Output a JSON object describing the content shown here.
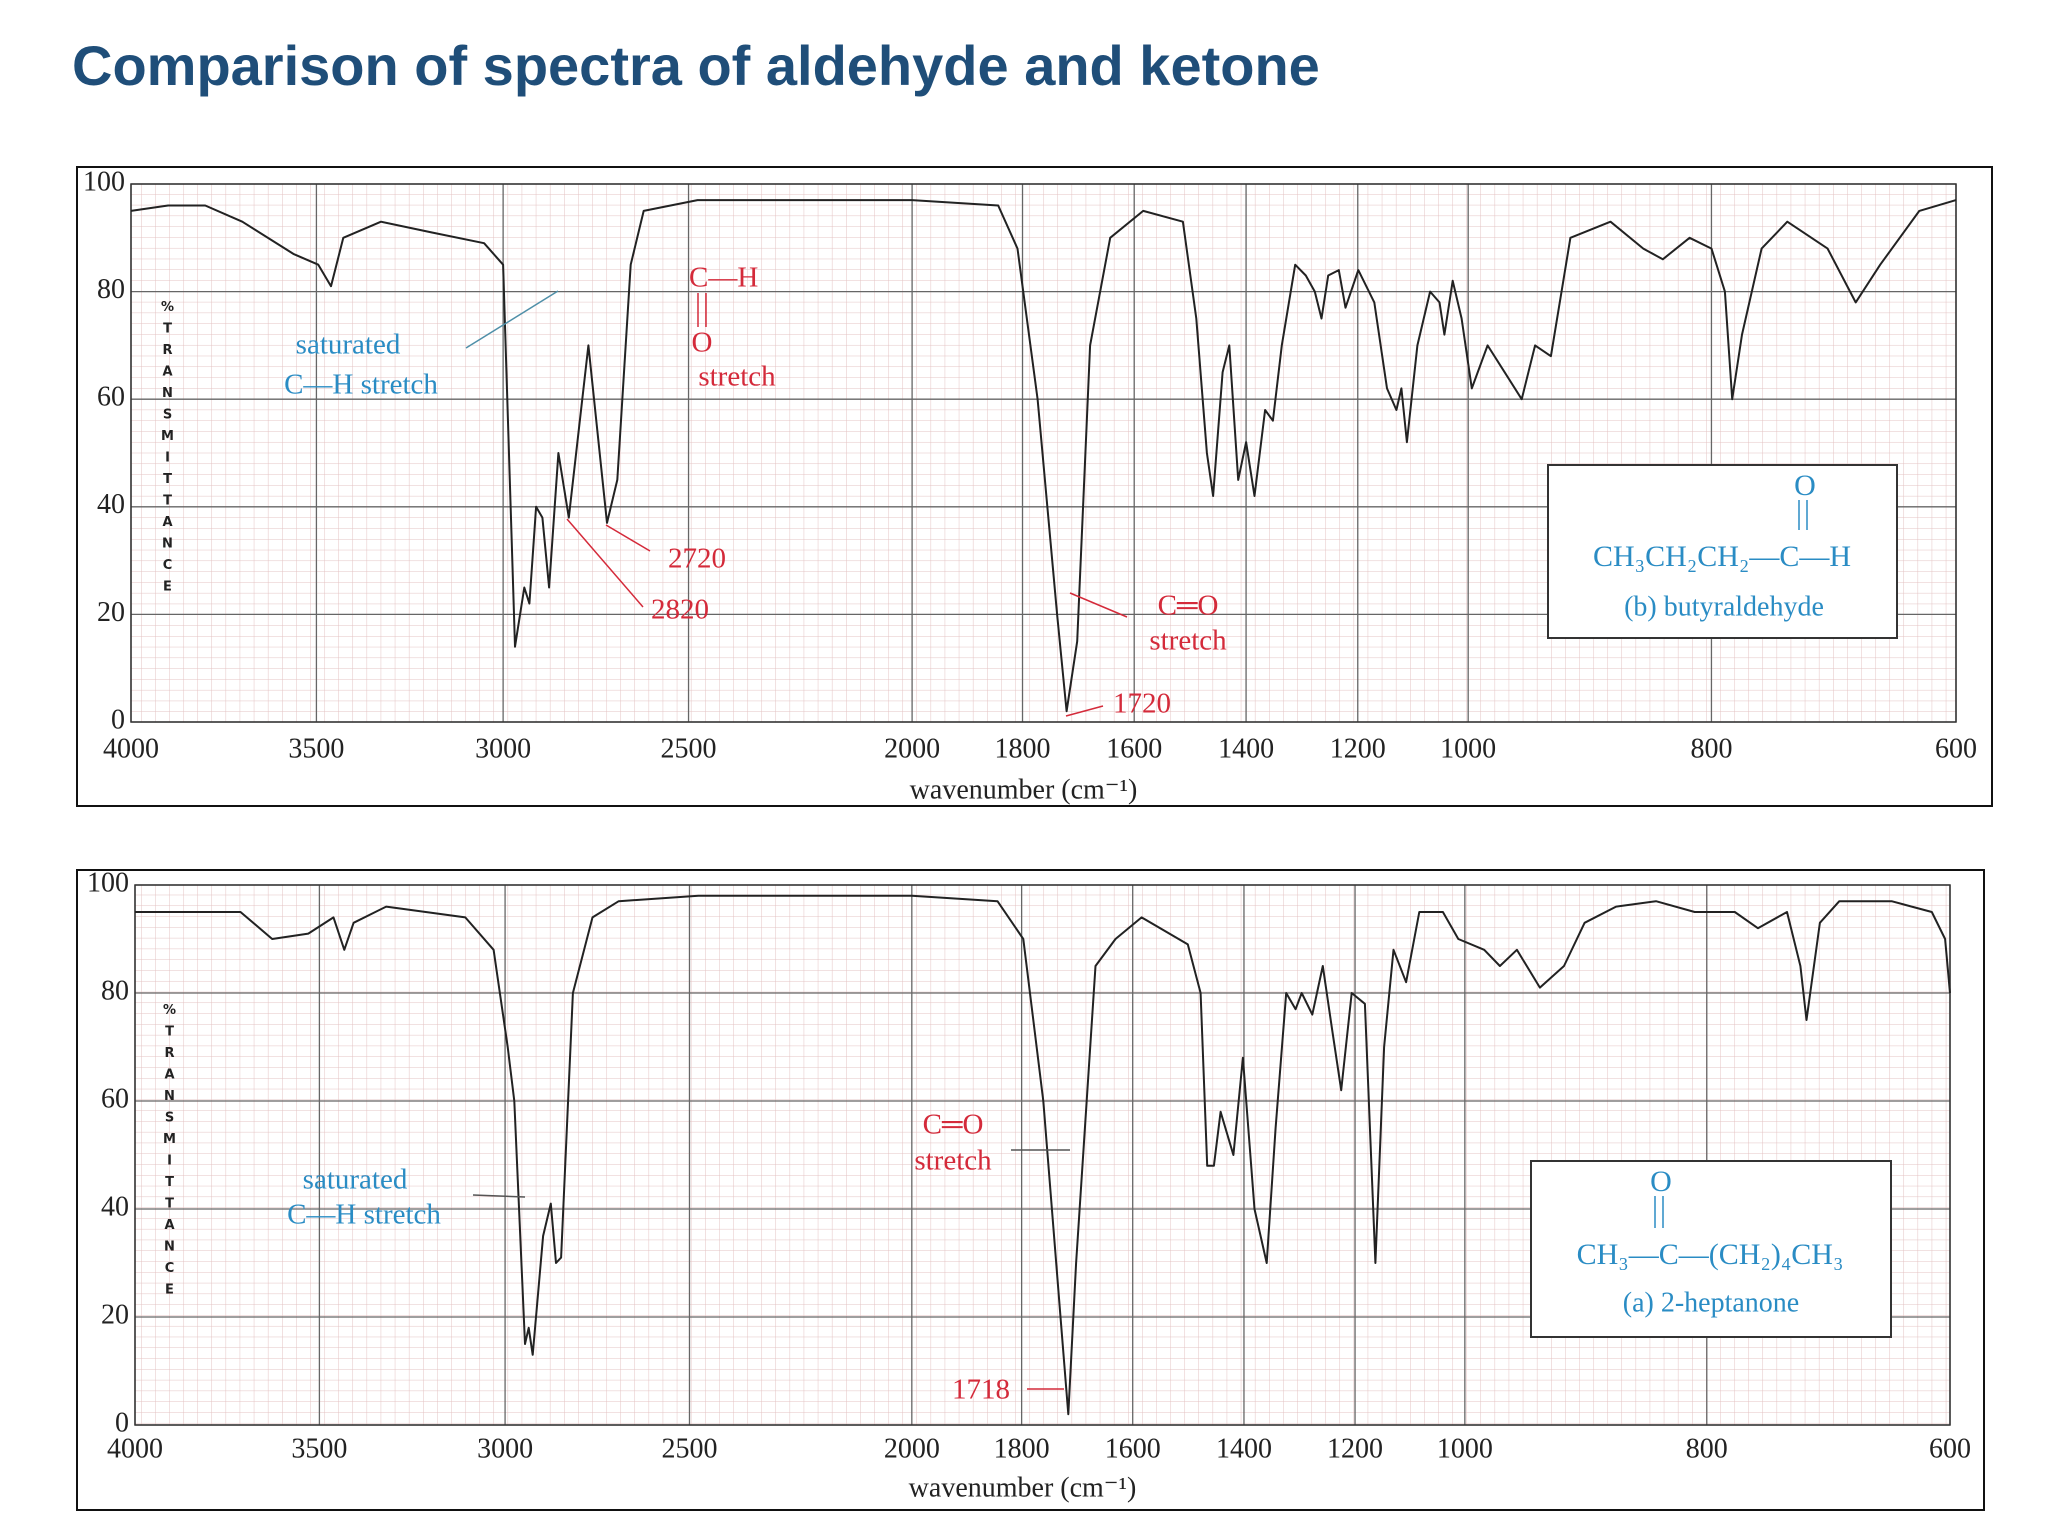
{
  "title": "Comparison of spectra of aldehyde and ketone",
  "chart_data": [
    {
      "type": "line",
      "x_label": "wavenumber (cm⁻¹)",
      "y_label": "%TRANSMITTANCE",
      "x": [
        4000,
        3900,
        3800,
        3700,
        3562,
        3495,
        3461,
        3428,
        3327,
        3192,
        3051,
        3000,
        2968,
        2943,
        2929,
        2911,
        2894,
        2876,
        2851,
        2823,
        2770,
        2720,
        2692,
        2656,
        2621,
        2480,
        2000,
        1844,
        1809,
        1773,
        1738,
        1721,
        1702,
        1679,
        1643,
        1584,
        1513,
        1489,
        1470,
        1459,
        1442,
        1430,
        1414,
        1400,
        1385,
        1366,
        1352,
        1336,
        1312,
        1293,
        1277,
        1265,
        1253,
        1234,
        1222,
        1199,
        1170,
        1147,
        1130,
        1121,
        1111,
        1092,
        1069,
        1052,
        1043,
        1028,
        1012,
        997,
        984,
        970,
        956,
        945,
        932,
        916,
        883,
        856,
        840,
        818,
        800,
        789,
        783,
        775,
        759,
        738,
        705,
        682,
        662,
        630,
        600
      ],
      "values": [
        95,
        96,
        96,
        93,
        87,
        85,
        81,
        90,
        93,
        91,
        89,
        85,
        14,
        25,
        22,
        40,
        38,
        25,
        50,
        38,
        70,
        37,
        45,
        85,
        95,
        97,
        97,
        96,
        88,
        60,
        20,
        2,
        15,
        70,
        90,
        95,
        93,
        75,
        50,
        42,
        65,
        70,
        45,
        52,
        42,
        58,
        56,
        70,
        85,
        83,
        80,
        75,
        83,
        84,
        77,
        84,
        78,
        62,
        58,
        62,
        52,
        70,
        80,
        78,
        72,
        82,
        75,
        62,
        70,
        65,
        60,
        70,
        68,
        90,
        93,
        88,
        86,
        90,
        88,
        80,
        60,
        72,
        88,
        93,
        88,
        78,
        85,
        95,
        97
      ],
      "color": "#222222",
      "xlim": [
        4000,
        600
      ],
      "ylim": [
        0,
        100
      ],
      "xticks": [
        4000,
        3500,
        3000,
        2500,
        2000,
        1800,
        1600,
        1400,
        1200,
        1000,
        800,
        600
      ],
      "yticks": [
        0,
        20,
        40,
        60,
        80,
        100
      ],
      "grid": true,
      "annotations": [
        "saturated",
        "C—H stretch",
        "C—H",
        "O",
        "stretch",
        "2720",
        "2820",
        "C═O",
        "stretch",
        "1720"
      ],
      "structure": {
        "top": "O",
        "formula": "CH₃CH₂CH₂—C—H",
        "caption": "(b) butyraldehyde"
      }
    },
    {
      "type": "line",
      "x_label": "wavenumber (cm⁻¹)",
      "y_label": "%TRANSMITTANCE",
      "x": [
        4000,
        3714,
        3628,
        3530,
        3462,
        3433,
        3408,
        3320,
        3107,
        3031,
        2993,
        2975,
        2946,
        2936,
        2925,
        2897,
        2876,
        2862,
        2848,
        2816,
        2763,
        2692,
        2480,
        2000,
        1844,
        1797,
        1761,
        1730,
        1716,
        1702,
        1667,
        1631,
        1584,
        1501,
        1478,
        1466,
        1454,
        1442,
        1419,
        1402,
        1381,
        1359,
        1343,
        1324,
        1307,
        1296,
        1277,
        1258,
        1241,
        1225,
        1206,
        1182,
        1163,
        1147,
        1130,
        1107,
        1083,
        1040,
        1012,
        984,
        971,
        957,
        938,
        918,
        901,
        875,
        842,
        810,
        777,
        758,
        734,
        723,
        718,
        707,
        691,
        648,
        615,
        604,
        600
      ],
      "values": [
        95,
        95,
        90,
        91,
        94,
        88,
        93,
        96,
        94,
        88,
        70,
        60,
        15,
        18,
        13,
        35,
        41,
        30,
        31,
        80,
        94,
        97,
        98,
        98,
        97,
        90,
        60,
        20,
        2,
        30,
        85,
        90,
        94,
        89,
        80,
        48,
        48,
        58,
        50,
        68,
        40,
        30,
        55,
        80,
        77,
        80,
        76,
        85,
        73,
        62,
        80,
        78,
        30,
        70,
        88,
        82,
        95,
        95,
        90,
        88,
        85,
        88,
        81,
        85,
        93,
        96,
        97,
        95,
        95,
        92,
        95,
        85,
        75,
        93,
        97,
        97,
        95,
        90,
        80
      ],
      "color": "#222222",
      "xlim": [
        4000,
        600
      ],
      "ylim": [
        0,
        100
      ],
      "xticks": [
        4000,
        3500,
        3000,
        2500,
        2000,
        1800,
        1600,
        1400,
        1200,
        1000,
        800,
        600
      ],
      "yticks": [
        0,
        20,
        40,
        60,
        80,
        100
      ],
      "grid": true,
      "annotations": [
        "saturated",
        "C—H stretch",
        "C═O",
        "stretch",
        "1718"
      ],
      "structure": {
        "top": "O",
        "formula": "CH₃—C—(CH₂)₄CH₃",
        "caption": "(a) 2-heptanone"
      }
    }
  ]
}
